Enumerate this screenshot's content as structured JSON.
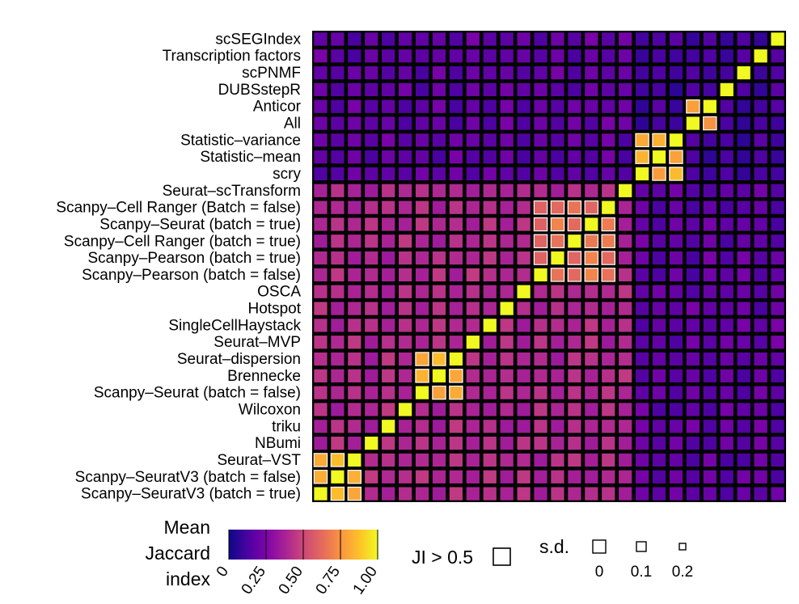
{
  "chart_data": {
    "type": "heatmap",
    "title": "",
    "rows": [
      "scSEGIndex",
      "Transcription factors",
      "scPNMF",
      "DUBSstepR",
      "Anticor",
      "All",
      "Statistic–variance",
      "Statistic–mean",
      "scry",
      "Seurat–scTransform",
      "Scanpy–Cell Ranger (Batch = false)",
      "Scanpy–Seurat (batch = true)",
      "Scanpy–Cell Ranger (batch = true)",
      "Scanpy–Pearson (batch = true)",
      "Scanpy–Pearson (batch = false)",
      "OSCA",
      "Hotspot",
      "SingleCellHaystack",
      "Seurat–MVP",
      "Seurat–dispersion",
      "Brennecke",
      "Scanpy–Seurat (batch = false)",
      "Wilcoxon",
      "triku",
      "NBumi",
      "Seurat–VST",
      "Scanpy–SeuratV3 (batch = false)",
      "Scanpy–SeuratV3 (batch = true)"
    ],
    "columns_order": "reverse of rows (left column = Scanpy–SeuratV3 (batch = true), right column = scSEGIndex)",
    "clusters": [
      {
        "members": [
          "Scanpy–SeuratV3 (batch = true)",
          "Scanpy–SeuratV3 (batch = false)",
          "Seurat–VST"
        ],
        "within": 0.85
      },
      {
        "members": [
          "Scanpy–Seurat (batch = false)",
          "Brennecke",
          "Seurat–dispersion"
        ],
        "within": 0.8
      },
      {
        "members": [
          "Scanpy–Pearson (batch = false)",
          "Scanpy–Pearson (batch = true)",
          "Scanpy–Cell Ranger (batch = true)",
          "Scanpy–Seurat (batch = true)",
          "Scanpy–Cell Ranger (Batch = false)"
        ],
        "within": 0.65
      },
      {
        "members": [
          "scry",
          "Statistic–mean",
          "Statistic–variance"
        ],
        "within": 0.82
      },
      {
        "members": [
          "All",
          "Anticor"
        ],
        "within": 0.78
      }
    ],
    "diagonal": 1.0,
    "background_left_block": 0.4,
    "background_right_block": 0.12,
    "colorbar": {
      "label_lines": [
        "Mean",
        "Jaccard",
        "index"
      ],
      "ticks": [
        "0",
        "0.25",
        "0.50",
        "0.75",
        "1.00"
      ],
      "range": [
        0,
        1
      ],
      "colormap": "plasma"
    },
    "legend_ji": {
      "label": "JI > 0.5"
    },
    "legend_sd": {
      "label": "s.d.",
      "values": [
        "0",
        "0.1",
        "0.2"
      ]
    }
  }
}
